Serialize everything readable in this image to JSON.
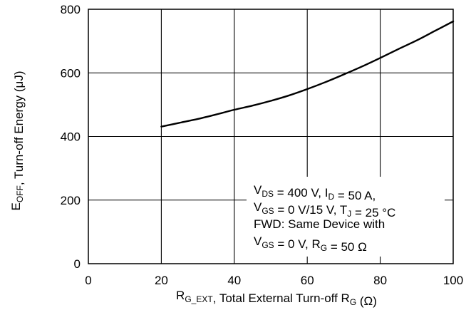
{
  "chart_data": {
    "type": "line",
    "x": [
      20,
      25,
      30,
      35,
      40,
      45,
      50,
      55,
      60,
      65,
      70,
      75,
      80,
      85,
      90,
      95,
      100
    ],
    "series": [
      {
        "values": [
          431,
          443,
          455,
          469,
          484,
          497,
          512,
          529,
          549,
          571,
          595,
          620,
          647,
          675,
          702,
          732,
          762
        ]
      }
    ],
    "xlabel": {
      "main": "R",
      "sub1": "G_EXT",
      "mid": ", Total External Turn-off R",
      "sub2": "G",
      "end": " (Ω)"
    },
    "ylabel": {
      "main": "E",
      "sub": "OFF",
      "end": ", Turn-off Energy (μJ)"
    },
    "xlim": [
      0,
      100
    ],
    "ylim": [
      0,
      800
    ],
    "xticks": [
      "0",
      "20",
      "40",
      "60",
      "80",
      "100"
    ],
    "yticks": [
      "0",
      "200",
      "400",
      "600",
      "800"
    ],
    "grid": true,
    "annotation": [
      {
        "parts": [
          {
            "t": "V"
          },
          {
            "t": "DS",
            "sub": true
          },
          {
            "t": " = 400 V, I"
          },
          {
            "t": "D",
            "sub": true
          },
          {
            "t": " = 50 A,"
          }
        ]
      },
      {
        "parts": [
          {
            "t": "V"
          },
          {
            "t": "GS",
            "sub": true
          },
          {
            "t": " = 0 V/15 V, T"
          },
          {
            "t": "J",
            "sub": true
          },
          {
            "t": " = 25 °C"
          }
        ]
      },
      {
        "parts": [
          {
            "t": "FWD: Same Device with"
          }
        ]
      },
      {
        "parts": [
          {
            "t": "V"
          },
          {
            "t": "GS",
            "sub": true
          },
          {
            "t": " = 0 V, R"
          },
          {
            "t": "G",
            "sub": true
          },
          {
            "t": " = 50 Ω"
          }
        ]
      }
    ],
    "colors": {
      "line": "#000000",
      "grid": "#000000",
      "background": "#ffffff"
    }
  }
}
